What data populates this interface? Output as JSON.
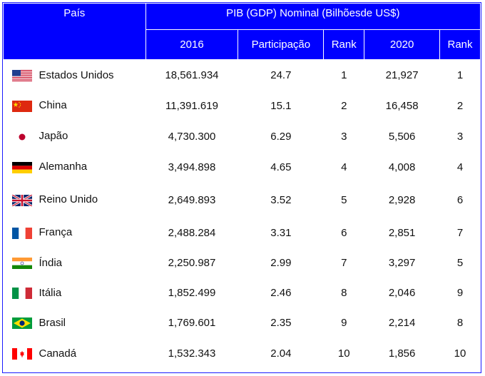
{
  "header": {
    "country": "País",
    "group": "PIB (GDP) Nominal (Bilhõesde US$)",
    "col_2016": "2016",
    "col_share": "Participação",
    "col_rank1": "Rank",
    "col_2020": "2020",
    "col_rank2": "Rank"
  },
  "rows": [
    {
      "country": "Estados Unidos",
      "flag": "usa-flag-icon",
      "gdp2016": "18,561.934",
      "share": "24.7",
      "rank2016": "1",
      "gdp2020": "21,927",
      "rank2020": "1"
    },
    {
      "country": "China",
      "flag": "china-flag-icon",
      "gdp2016": "11,391.619",
      "share": "15.1",
      "rank2016": "2",
      "gdp2020": "16,458",
      "rank2020": "2"
    },
    {
      "country": "Japão",
      "flag": "japan-flag-icon",
      "gdp2016": "4,730.300",
      "share": "6.29",
      "rank2016": "3",
      "gdp2020": "5,506",
      "rank2020": "3"
    },
    {
      "country": "Alemanha",
      "flag": "germany-flag-icon",
      "gdp2016": "3,494.898",
      "share": "4.65",
      "rank2016": "4",
      "gdp2020": "4,008",
      "rank2020": "4"
    },
    {
      "country": "Reino Unido",
      "flag": "uk-flag-icon",
      "gdp2016": "2,649.893",
      "share": "3.52",
      "rank2016": "5",
      "gdp2020": "2,928",
      "rank2020": "6"
    },
    {
      "country": "França",
      "flag": "france-flag-icon",
      "gdp2016": "2,488.284",
      "share": "3.31",
      "rank2016": "6",
      "gdp2020": "2,851",
      "rank2020": "7"
    },
    {
      "country": "Índia",
      "flag": "india-flag-icon",
      "gdp2016": "2,250.987",
      "share": "2.99",
      "rank2016": "7",
      "gdp2020": "3,297",
      "rank2020": "5"
    },
    {
      "country": "Itália",
      "flag": "italy-flag-icon",
      "gdp2016": "1,852.499",
      "share": "2.46",
      "rank2016": "8",
      "gdp2020": "2,046",
      "rank2020": "9"
    },
    {
      "country": "Brasil",
      "flag": "brazil-flag-icon",
      "gdp2016": "1,769.601",
      "share": "2.35",
      "rank2016": "9",
      "gdp2020": "2,214",
      "rank2020": "8"
    },
    {
      "country": "Canadá",
      "flag": "canada-flag-icon",
      "gdp2016": "1,532.343",
      "share": "2.04",
      "rank2016": "10",
      "gdp2020": "1,856",
      "rank2020": "10"
    }
  ],
  "colors": {
    "header_bg": "#0000ff",
    "header_text": "#ffffff",
    "border": "#1a1aff"
  }
}
